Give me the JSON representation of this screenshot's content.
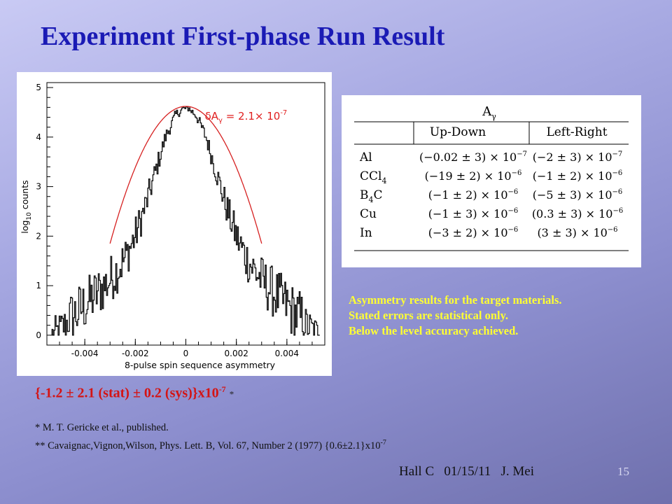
{
  "title": "Experiment First-phase Run Result",
  "chart_data": {
    "type": "line",
    "xlabel": "8-pulse spin sequence asymmetry",
    "ylabel_base": "log",
    "ylabel_sub": "10",
    "ylabel_rest": " counts",
    "xlim": [
      -0.0055,
      0.0055
    ],
    "ylim": [
      -0.2,
      5.1
    ],
    "x_ticks": [
      -0.004,
      -0.002,
      0,
      0.002,
      0.004
    ],
    "x_tick_labels": [
      "-0.004",
      "-0.002",
      "0",
      "0.002",
      "0.004"
    ],
    "y_ticks": [
      0,
      1,
      2,
      3,
      4,
      5
    ],
    "y_tick_labels": [
      "0",
      "1",
      "2",
      "3",
      "4",
      "5"
    ],
    "annotation": {
      "prefix": "δA",
      "sub": "γ",
      "mid": " = 2.1× 10",
      "sup": "-7"
    },
    "series": [
      {
        "color": "#111111",
        "description": "measured histogram",
        "peak": 4.62,
        "x": [
          -0.0052,
          -0.0048,
          -0.0044,
          -0.004,
          -0.0036,
          -0.0032,
          -0.0028,
          -0.0024,
          -0.002,
          -0.0016,
          -0.0012,
          -0.0008,
          -0.0004,
          0,
          0.0004,
          0.0008,
          0.0012,
          0.0016,
          0.002,
          0.0024,
          0.0028,
          0.0032,
          0.0036,
          0.004,
          0.0044,
          0.0048,
          0.0052
        ],
        "y": [
          0.0,
          0.2,
          0.4,
          0.6,
          0.8,
          1.0,
          1.25,
          1.55,
          2.0,
          2.6,
          3.3,
          4.0,
          4.45,
          4.62,
          4.45,
          4.0,
          3.3,
          2.6,
          2.0,
          1.55,
          1.25,
          1.0,
          0.8,
          0.6,
          0.4,
          0.2,
          0.0
        ]
      },
      {
        "color": "#d62020",
        "description": "gaussian fit",
        "mean": 0,
        "sigma": 0.00084,
        "peak": 4.62
      }
    ]
  },
  "table": {
    "title_base": "A",
    "title_sub": "γ",
    "columns": [
      "Up-Down",
      "Left-Right"
    ],
    "rows": [
      {
        "target": "Al",
        "target_sub": "",
        "target_rest": "",
        "ud": "(−0.02 ± 3) × 10",
        "ud_exp": "−7",
        "lr": "(−2 ± 3) × 10",
        "lr_exp": "−7"
      },
      {
        "target": "CCl",
        "target_sub": "4",
        "target_rest": "",
        "ud": "(−19 ± 2) × 10",
        "ud_exp": "−6",
        "lr": "(−1 ± 2) × 10",
        "lr_exp": "−6"
      },
      {
        "target": "B",
        "target_sub": "4",
        "target_rest": "C",
        "ud": "(−1 ± 2) × 10",
        "ud_exp": "−6",
        "lr": "(−5 ± 3) × 10",
        "lr_exp": "−6"
      },
      {
        "target": "Cu",
        "target_sub": "",
        "target_rest": "",
        "ud": "(−1 ± 3) × 10",
        "ud_exp": "−6",
        "lr": "(0.3 ± 3) × 10",
        "lr_exp": "−6"
      },
      {
        "target": "In",
        "target_sub": "",
        "target_rest": "",
        "ud": "(−3 ± 2) × 10",
        "ud_exp": "−6",
        "lr": "(3 ± 3) × 10",
        "lr_exp": "−6"
      }
    ]
  },
  "caption": {
    "line1": "Asymmetry results for the target materials.",
    "line2": "Stated errors are statistical only.",
    "line3": "Below the level accuracy achieved."
  },
  "result": {
    "text": "{-1.2 ± 2.1 (stat) ± 0.2 (sys)}x10",
    "sup": "-7",
    "note_mark": "*"
  },
  "refs": {
    "ref1": "* M. T. Gericke et al., published.",
    "ref2": "** Cavaignac,Vignon,Wilson, Phys. Lett. B, Vol. 67, Number 2 (1977)  {0.6±2.1}x10",
    "ref2_sup": "-7"
  },
  "footer": "Hall C   01/15/11   J. Mei",
  "page_number": "15",
  "colors": {
    "title": "#1a1ab5",
    "caption": "#ffff33",
    "result": "#d41414",
    "fit": "#d62020"
  }
}
